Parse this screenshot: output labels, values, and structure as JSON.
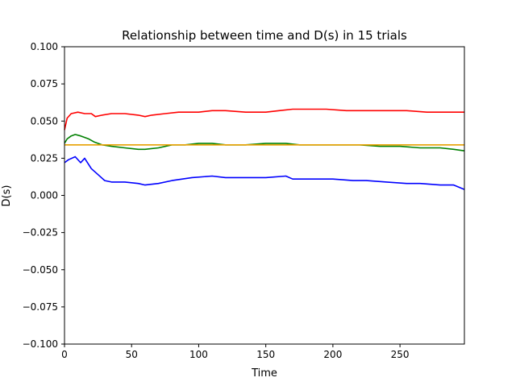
{
  "chart_data": {
    "type": "line",
    "title": "Relationship between time and D(s) in 15 trials",
    "xlabel": "Time",
    "ylabel": "D(s)",
    "xlim": [
      0,
      298
    ],
    "ylim": [
      -0.1,
      0.1
    ],
    "xticks": [
      0,
      50,
      100,
      150,
      200,
      250
    ],
    "xtick_labels": [
      "0",
      "50",
      "100",
      "150",
      "200",
      "250"
    ],
    "yticks": [
      -0.1,
      -0.075,
      -0.05,
      -0.025,
      0.0,
      0.025,
      0.05,
      0.075,
      0.1
    ],
    "ytick_labels": [
      "−0.100",
      "−0.075",
      "−0.050",
      "−0.025",
      "0.000",
      "0.025",
      "0.050",
      "0.075",
      "0.100"
    ],
    "grid": false,
    "legend": "none",
    "series": [
      {
        "color": "#ff0000",
        "x": [
          0,
          2,
          5,
          10,
          15,
          20,
          23,
          28,
          35,
          45,
          55,
          60,
          65,
          75,
          85,
          100,
          110,
          120,
          135,
          150,
          160,
          170,
          185,
          195,
          210,
          225,
          240,
          255,
          270,
          285,
          298
        ],
        "y": [
          0.044,
          0.052,
          0.055,
          0.056,
          0.055,
          0.055,
          0.053,
          0.054,
          0.055,
          0.055,
          0.054,
          0.053,
          0.054,
          0.055,
          0.056,
          0.056,
          0.057,
          0.057,
          0.056,
          0.056,
          0.057,
          0.058,
          0.058,
          0.058,
          0.057,
          0.057,
          0.057,
          0.057,
          0.056,
          0.056,
          0.056
        ]
      },
      {
        "color": "#008000",
        "x": [
          0,
          2,
          5,
          8,
          12,
          18,
          22,
          28,
          35,
          45,
          55,
          60,
          70,
          80,
          90,
          100,
          110,
          120,
          135,
          150,
          165,
          175,
          190,
          205,
          220,
          235,
          250,
          265,
          280,
          290,
          298
        ],
        "y": [
          0.035,
          0.038,
          0.04,
          0.041,
          0.04,
          0.038,
          0.036,
          0.034,
          0.033,
          0.032,
          0.031,
          0.031,
          0.032,
          0.034,
          0.034,
          0.035,
          0.035,
          0.034,
          0.034,
          0.035,
          0.035,
          0.034,
          0.034,
          0.034,
          0.034,
          0.033,
          0.033,
          0.032,
          0.032,
          0.031,
          0.03
        ]
      },
      {
        "color": "#0000ff",
        "x": [
          0,
          3,
          8,
          12,
          15,
          20,
          25,
          30,
          35,
          45,
          55,
          60,
          70,
          80,
          95,
          110,
          120,
          135,
          150,
          165,
          170,
          185,
          200,
          215,
          225,
          240,
          255,
          265,
          280,
          290,
          298
        ],
        "y": [
          0.022,
          0.024,
          0.026,
          0.022,
          0.025,
          0.018,
          0.014,
          0.01,
          0.009,
          0.009,
          0.008,
          0.007,
          0.008,
          0.01,
          0.012,
          0.013,
          0.012,
          0.012,
          0.012,
          0.013,
          0.011,
          0.011,
          0.011,
          0.01,
          0.01,
          0.009,
          0.008,
          0.008,
          0.007,
          0.007,
          0.004
        ]
      },
      {
        "color": "#e6a000",
        "x": [
          0,
          298
        ],
        "y": [
          0.034,
          0.034
        ]
      }
    ]
  }
}
